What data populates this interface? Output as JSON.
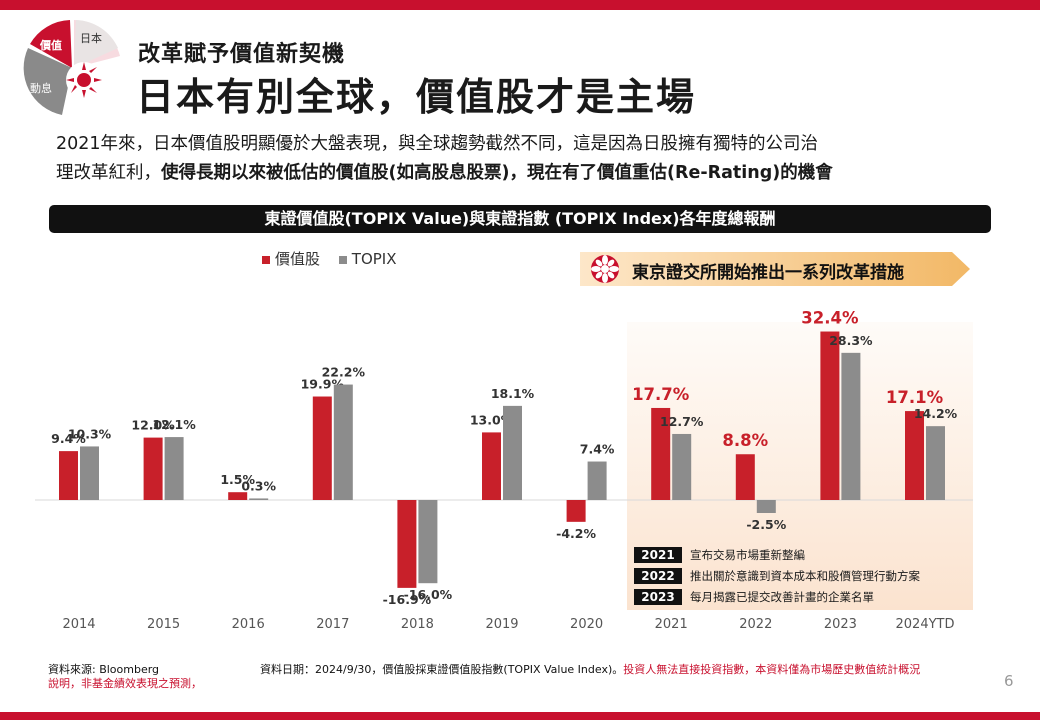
{
  "badge": {
    "seg_value": "價值",
    "seg_japan": "日本",
    "seg_momentum": "動息"
  },
  "header": {
    "subtitle": "改革賦予價值新契機",
    "title": "日本有別全球，價值股才是主場"
  },
  "description": {
    "line1": "2021年來，日本價值股明顯優於大盤表現，與全球趨勢截然不同，這是因為日股擁有獨特的公司治",
    "line2_plain": "理改革紅利，",
    "line2_bold": "使得長期以來被低估的價值股(如高股息股票)，現在有了價值重估(Re-Rating)的機會"
  },
  "callout": "東京證交所開始推出一系列改革措施",
  "reforms": [
    {
      "year": "2021",
      "text": "宣布交易市場重新整編"
    },
    {
      "year": "2022",
      "text": "推出關於意識到資本成本和股價管理行動方案"
    },
    {
      "year": "2023",
      "text": "每月揭露已提交改善計畫的企業名單"
    }
  ],
  "colors": {
    "accent": "#c8102e",
    "value_series": "#c8202a",
    "topix_series": "#8c8c8c"
  },
  "chart_data": {
    "type": "bar",
    "title": "東證價值股(TOPIX Value)與東證指數 (TOPIX Index)各年度總報酬",
    "categories": [
      "2014",
      "2015",
      "2016",
      "2017",
      "2018",
      "2019",
      "2020",
      "2021",
      "2022",
      "2023",
      "2024YTD"
    ],
    "series": [
      {
        "name": "價值股",
        "values": [
          9.4,
          12.0,
          1.5,
          19.9,
          -16.9,
          13.0,
          -4.2,
          17.7,
          8.8,
          32.4,
          17.1
        ],
        "labels": [
          "9.4%",
          "12.0%",
          "1.5%",
          "19.9%",
          "-16.9%",
          "13.0%",
          "-4.2%",
          "17.7%",
          "8.8%",
          "32.4%",
          "17.1%"
        ]
      },
      {
        "name": "TOPIX",
        "values": [
          10.3,
          12.1,
          0.3,
          22.2,
          -16.0,
          18.1,
          7.4,
          12.7,
          -2.5,
          28.3,
          14.2
        ],
        "labels": [
          "10.3%",
          "12.1%",
          "0.3%",
          "22.2%",
          "-16.0%",
          "18.1%",
          "7.4%",
          "12.7%",
          "-2.5%",
          "28.3%",
          "14.2%"
        ]
      }
    ],
    "highlight_from": "2021",
    "xlabel": "",
    "ylabel": "",
    "ylim": [
      -20,
      35
    ],
    "unit": "%"
  },
  "footer": {
    "source": "資料來源: Bloomberg",
    "disclaimer_left": "說明，非基金績效表現之預測，",
    "date_note": "資料日期：2024/9/30，價值股採東證價值股指數(TOPIX Value Index)。",
    "date_note_red": "投資人無法直接投資指數，本資料僅為市場歷史數值統計概況",
    "page": "6"
  }
}
